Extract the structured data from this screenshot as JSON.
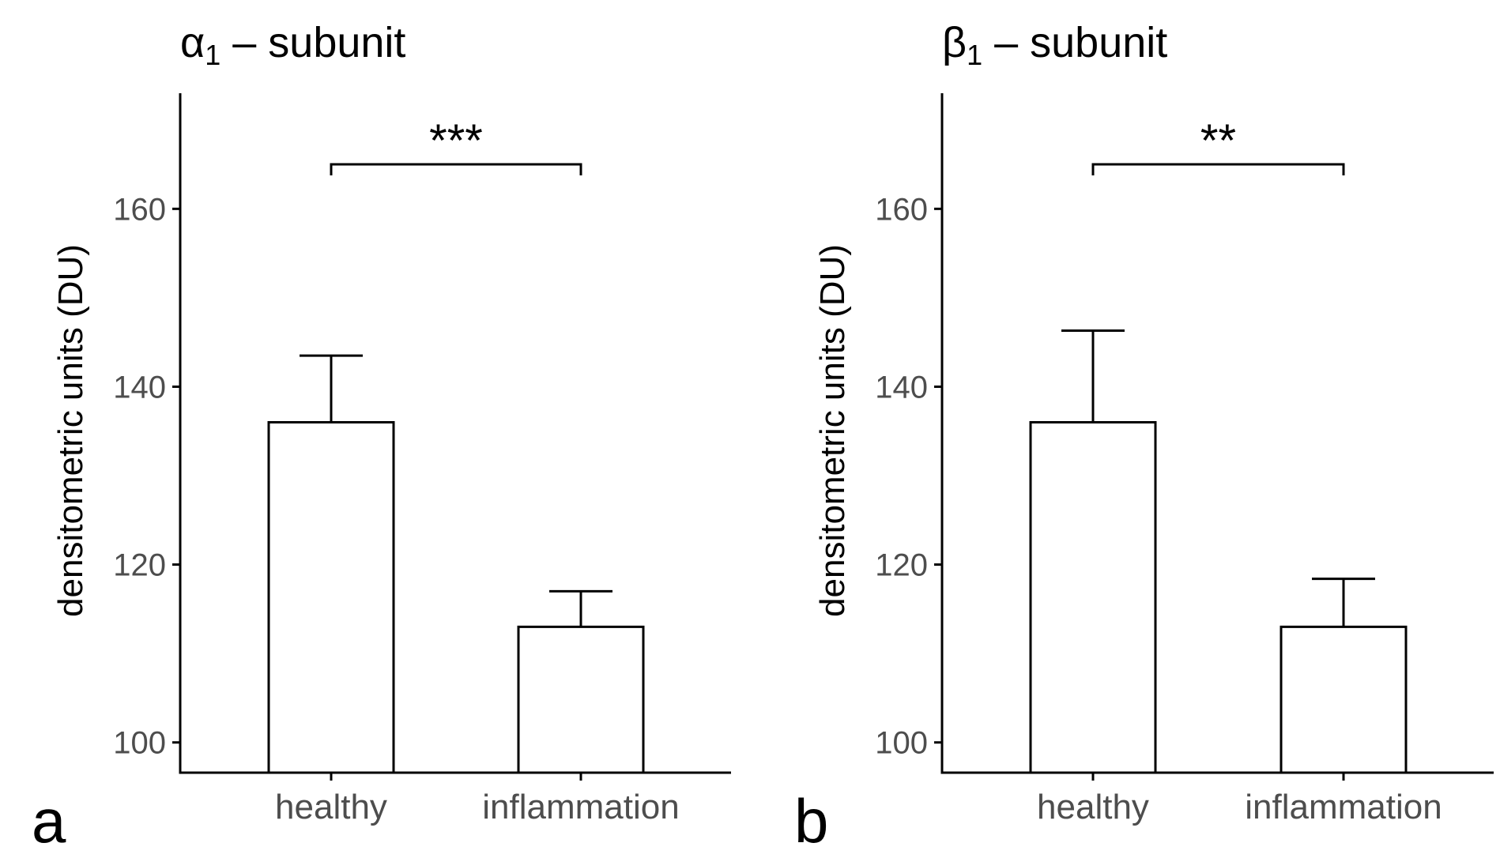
{
  "chart_data": [
    {
      "type": "bar",
      "panel": "a",
      "title": "α",
      "title_subscript": "1",
      "title_suffix": " – subunit",
      "categories": [
        "healthy",
        "inflammation"
      ],
      "values": [
        136,
        113
      ],
      "error_upper": [
        143.5,
        117
      ],
      "ylabel": "densitometric units (DU)",
      "xlabel": "",
      "ylim": [
        96.6,
        173
      ],
      "yticks": [
        100,
        120,
        140,
        160
      ],
      "significance": {
        "from": "healthy",
        "to": "inflammation",
        "label": "***",
        "y": 165
      }
    },
    {
      "type": "bar",
      "panel": "b",
      "title": "β",
      "title_subscript": "1",
      "title_suffix": " – subunit",
      "categories": [
        "healthy",
        "inflammation"
      ],
      "values": [
        136,
        113
      ],
      "error_upper": [
        146.3,
        118.4
      ],
      "ylabel": "densitometric units (DU)",
      "xlabel": "",
      "ylim": [
        96.6,
        173
      ],
      "yticks": [
        100,
        120,
        140,
        160
      ],
      "significance": {
        "from": "healthy",
        "to": "inflammation",
        "label": "**",
        "y": 165
      }
    }
  ],
  "colors": {
    "bar_fill": "#ffffff",
    "stroke": "#000000",
    "tick_text": "#4d4d4d"
  }
}
